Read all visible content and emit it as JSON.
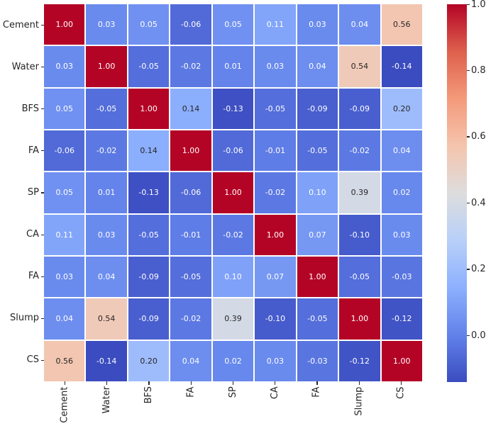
{
  "chart_data": {
    "type": "heatmap",
    "title": "",
    "x_labels": [
      "Cement",
      "Water",
      "BFS",
      "FA",
      "SP",
      "CA",
      "FA",
      "Slump",
      "CS"
    ],
    "y_labels": [
      "Cement",
      "Water",
      "BFS",
      "FA",
      "SP",
      "CA",
      "FA",
      "Slump",
      "CS"
    ],
    "matrix": [
      [
        1.0,
        0.03,
        0.05,
        -0.06,
        0.05,
        0.11,
        0.03,
        0.04,
        0.56
      ],
      [
        0.03,
        1.0,
        -0.05,
        -0.02,
        0.01,
        0.03,
        0.04,
        0.54,
        -0.14
      ],
      [
        0.05,
        -0.05,
        1.0,
        0.14,
        -0.13,
        -0.05,
        -0.09,
        -0.09,
        0.2
      ],
      [
        -0.06,
        -0.02,
        0.14,
        1.0,
        -0.06,
        -0.01,
        -0.05,
        -0.02,
        0.04
      ],
      [
        0.05,
        0.01,
        -0.13,
        -0.06,
        1.0,
        -0.02,
        0.1,
        0.39,
        0.02
      ],
      [
        0.11,
        0.03,
        -0.05,
        -0.01,
        -0.02,
        1.0,
        0.07,
        -0.1,
        0.03
      ],
      [
        0.03,
        0.04,
        -0.09,
        -0.05,
        0.1,
        0.07,
        1.0,
        -0.05,
        -0.03
      ],
      [
        0.04,
        0.54,
        -0.09,
        -0.02,
        0.39,
        -0.1,
        -0.05,
        1.0,
        -0.12
      ],
      [
        0.56,
        -0.14,
        0.2,
        0.04,
        0.02,
        0.03,
        -0.03,
        -0.12,
        1.0
      ]
    ],
    "vmin": -0.14,
    "vmax": 1.0,
    "colormap": {
      "name": "coolwarm",
      "stops": [
        "#3b4cc0",
        "#6282ea",
        "#8db0fe",
        "#b8d0f9",
        "#dddddd",
        "#f5c4ad",
        "#f49a7b",
        "#de604d",
        "#b40426"
      ]
    },
    "colorbar": {
      "tick_labels": [
        "1.0",
        "0.8",
        "0.6",
        "0.4",
        "0.2",
        "0.0"
      ]
    },
    "annotation": {
      "decimals": 2,
      "light_text": "#ffffff",
      "dark_text": "#262626",
      "luminance_threshold": 0.408
    },
    "grid_line_color": "#ffffff",
    "tick_color": "#262626",
    "background": "#ffffff",
    "legend_position": "right-colorbar",
    "grid": "white cell separators"
  }
}
